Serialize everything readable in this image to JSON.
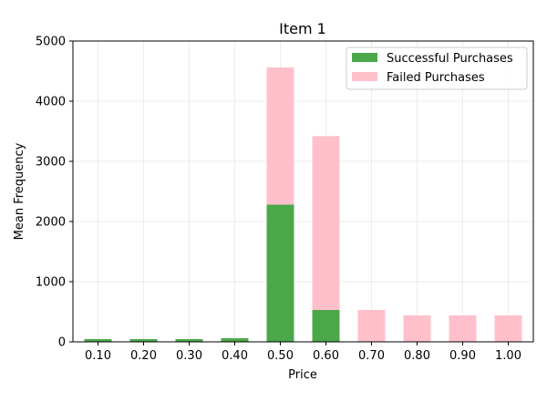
{
  "chart_data": {
    "type": "bar",
    "stacked": true,
    "title": "Item 1",
    "xlabel": "Price",
    "ylabel": "Mean Frequency",
    "categories": [
      "0.10",
      "0.20",
      "0.30",
      "0.40",
      "0.50",
      "0.60",
      "0.70",
      "0.80",
      "0.90",
      "1.00"
    ],
    "series": [
      {
        "name": "Successful Purchases",
        "color": "#4aa84a",
        "values": [
          45,
          45,
          45,
          60,
          2280,
          530,
          10,
          0,
          0,
          0
        ]
      },
      {
        "name": "Failed Purchases",
        "color": "#ffc0cb",
        "values": [
          0,
          0,
          0,
          0,
          2280,
          2890,
          520,
          440,
          440,
          440
        ]
      }
    ],
    "ylim": [
      0,
      5000
    ],
    "yticks": [
      0,
      1000,
      2000,
      3000,
      4000,
      5000
    ],
    "grid": true,
    "legend_position": "top-right"
  }
}
